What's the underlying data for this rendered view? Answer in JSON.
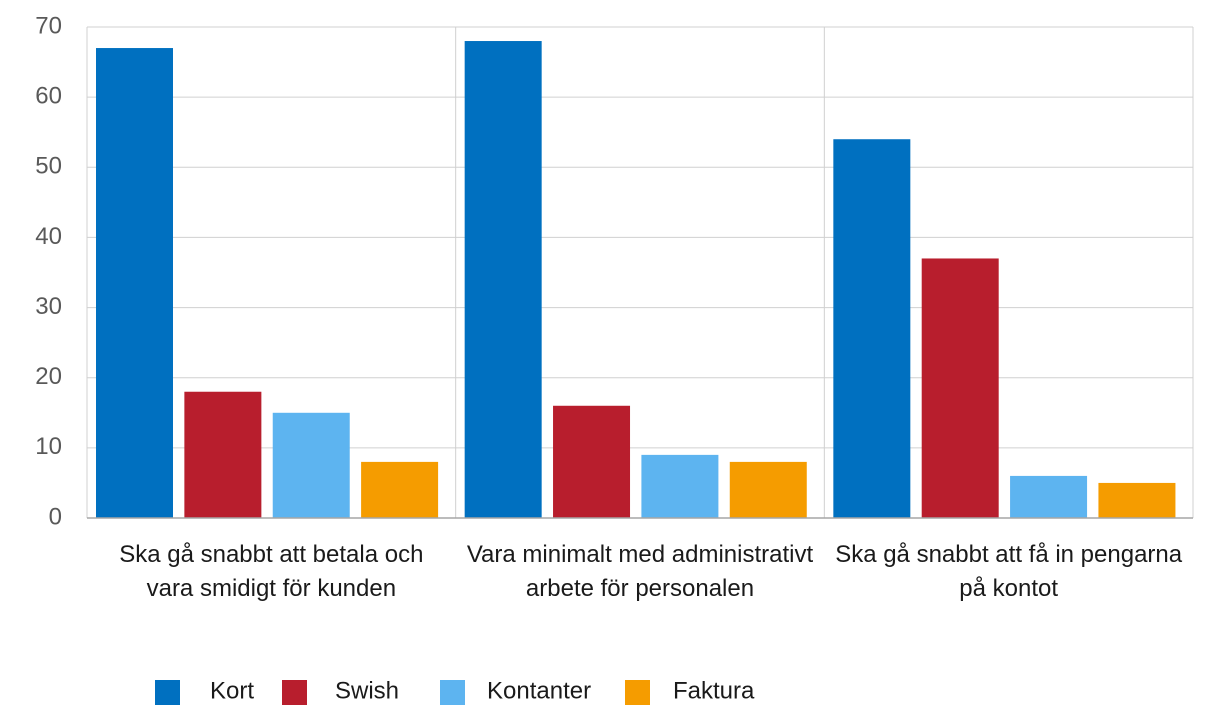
{
  "chart_data": {
    "type": "bar",
    "categories": [
      "Ska gå snabbt att betala och vara smidigt för kunden",
      "Vara minimalt med administrativt arbete för personalen",
      "Ska gå snabbt att få in pengarna på kontot"
    ],
    "series": [
      {
        "name": "Kort",
        "color": "#0070c0",
        "values": [
          67,
          68,
          54
        ]
      },
      {
        "name": "Swish",
        "color": "#b81e2d",
        "values": [
          18,
          16,
          37
        ]
      },
      {
        "name": "Kontanter",
        "color": "#5db4f0",
        "values": [
          15,
          9,
          6
        ]
      },
      {
        "name": "Faktura",
        "color": "#f59c00",
        "values": [
          8,
          8,
          5
        ]
      }
    ],
    "ylim": [
      0,
      70
    ],
    "yticks": [
      0,
      10,
      20,
      30,
      40,
      50,
      60,
      70
    ],
    "grid": true,
    "legend": "bottom"
  }
}
